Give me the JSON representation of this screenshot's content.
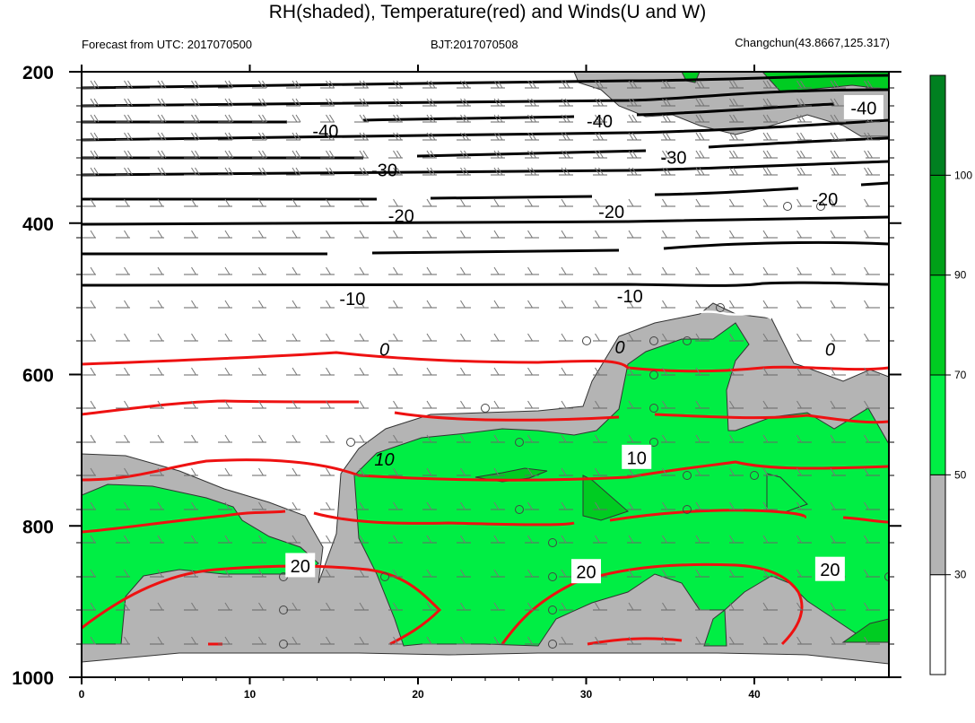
{
  "chart_data": {
    "type": "heatmap",
    "title": "RH(shaded), Temperature(red) and Winds(U and W)",
    "subtitle_left": "Forecast from UTC: 2017070500",
    "subtitle_center": "BJT:2017070508",
    "subtitle_right": "Changchun(43.8667,125.317)",
    "x": {
      "ticks": [
        0,
        10,
        20,
        30,
        40
      ],
      "range": [
        0,
        48
      ]
    },
    "y": {
      "ticks": [
        200,
        400,
        600,
        800,
        1000
      ],
      "range": [
        200,
        1000
      ],
      "reversed": true
    },
    "colorbar": {
      "ticks": [
        30,
        50,
        70,
        90,
        100
      ],
      "bins": [
        {
          "range": [
            0,
            30
          ],
          "color": "#ffffff"
        },
        {
          "range": [
            30,
            50
          ],
          "color": "#b4b4b4"
        },
        {
          "range": [
            50,
            70
          ],
          "color": "#00ee44"
        },
        {
          "range": [
            70,
            90
          ],
          "color": "#00cc22"
        },
        {
          "range": [
            90,
            100
          ],
          "color": "#00a018"
        },
        {
          "range": [
            100,
            110
          ],
          "color": "#008020"
        }
      ]
    },
    "temperature_contour_labels": [
      {
        "text": "-40",
        "x": 14.5,
        "p": 278
      },
      {
        "text": "-40",
        "x": 30.8,
        "p": 265
      },
      {
        "text": "-40",
        "x": 46.5,
        "p": 248
      },
      {
        "text": "-30",
        "x": 18,
        "p": 330
      },
      {
        "text": "-30",
        "x": 35.2,
        "p": 313
      },
      {
        "text": "-20",
        "x": 19,
        "p": 390
      },
      {
        "text": "-20",
        "x": 31.5,
        "p": 385
      },
      {
        "text": "-20",
        "x": 44.2,
        "p": 368
      },
      {
        "text": "-10",
        "x": 16.1,
        "p": 500
      },
      {
        "text": "-10",
        "x": 32.6,
        "p": 496
      },
      {
        "text": "0",
        "x": 18,
        "p": 567
      },
      {
        "text": "0",
        "x": 32,
        "p": 564
      },
      {
        "text": "0",
        "x": 44.5,
        "p": 567
      },
      {
        "text": "10",
        "x": 18,
        "p": 712
      },
      {
        "text": "10",
        "x": 33,
        "p": 710
      },
      {
        "text": "20",
        "x": 13,
        "p": 853
      },
      {
        "text": "20",
        "x": 30,
        "p": 861
      },
      {
        "text": "20",
        "x": 44.5,
        "p": 858
      }
    ],
    "colors": {
      "temperature": "#ee1111",
      "isotherm_negative": "#000000",
      "isotherm_zero": "#ffffff",
      "rh_low": "#b4b4b4",
      "rh_mid": "#00ee44",
      "rh_high": "#00cc22",
      "rh_top": "#00a018"
    }
  }
}
